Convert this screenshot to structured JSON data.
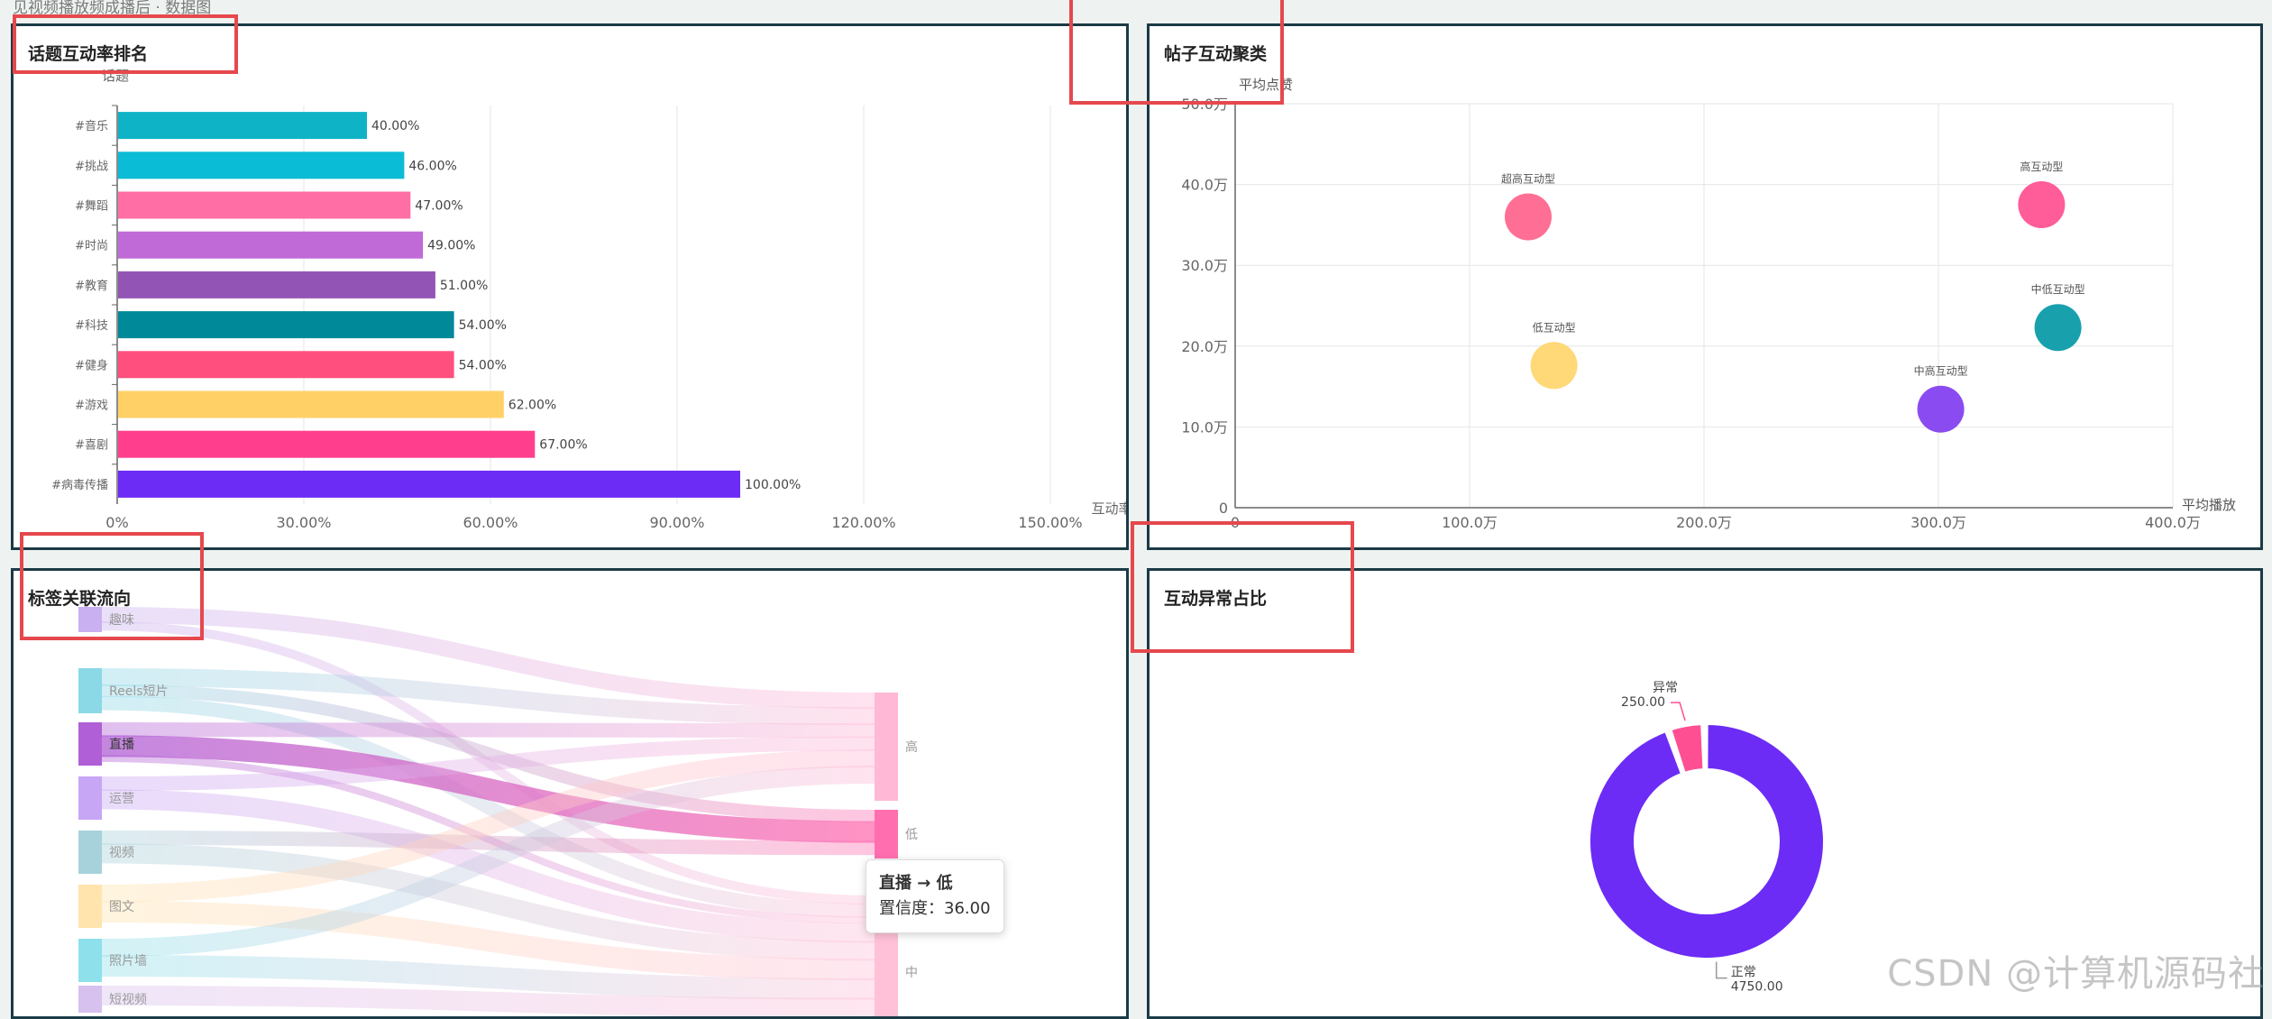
{
  "page": {
    "breadcrumb": "见视频播放频成播后 · 数据图",
    "watermark": "CSDN @计算机源码社"
  },
  "panels": {
    "topic_rank": {
      "title": "话题互动率排名"
    },
    "post_cluster": {
      "title": "帖子互动聚类"
    },
    "tag_flow": {
      "title": "标签关联流向"
    },
    "anomaly": {
      "title": "互动异常占比"
    }
  },
  "tooltip": {
    "line1": "直播 → 低",
    "line2": "置信度：36.00"
  },
  "colors": {
    "accent_border": "#1b3b46",
    "highlight": "#e5484d"
  },
  "chart_data": [
    {
      "type": "bar",
      "orientation": "horizontal",
      "title": "话题互动率排名",
      "ylabel": "话题",
      "xlabel": "互动率",
      "xlim": [
        0,
        150
      ],
      "xticks": [
        "0%",
        "30.00%",
        "60.00%",
        "90.00%",
        "120.00%",
        "150.00%"
      ],
      "categories": [
        "#音乐",
        "#挑战",
        "#舞蹈",
        "#时尚",
        "#教育",
        "#科技",
        "#健身",
        "#游戏",
        "#喜剧",
        "#病毒传播"
      ],
      "values": [
        40,
        46,
        47,
        49,
        51,
        54,
        54,
        62,
        67,
        100
      ],
      "value_labels": [
        "40.00%",
        "46.00%",
        "47.00%",
        "49.00%",
        "51.00%",
        "54.00%",
        "54.00%",
        "62.00%",
        "67.00%",
        "100.00%"
      ],
      "colors": [
        "#0fb3c6",
        "#0bbcd6",
        "#ff6fa5",
        "#c06ad8",
        "#9355b5",
        "#008a99",
        "#ff4f7e",
        "#ffd066",
        "#ff3f8e",
        "#6c2cf5"
      ]
    },
    {
      "type": "scatter",
      "title": "帖子互动聚类",
      "xlabel": "平均播放",
      "ylabel": "平均点赞",
      "xlim": [
        0,
        400
      ],
      "ylim": [
        0,
        50
      ],
      "xticks": [
        "0",
        "100.0万",
        "200.0万",
        "300.0万",
        "400.0万"
      ],
      "yticks": [
        "0",
        "10.0万",
        "20.0万",
        "30.0万",
        "40.0万",
        "50.0万"
      ],
      "points": [
        {
          "label": "超高互动型",
          "x": 125,
          "y": 36,
          "color": "#ff6f95"
        },
        {
          "label": "高互动型",
          "x": 344,
          "y": 37.5,
          "color": "#ff5c9a"
        },
        {
          "label": "中低互动型",
          "x": 351,
          "y": 22.3,
          "color": "#18a0ad"
        },
        {
          "label": "低互动型",
          "x": 136,
          "y": 17.6,
          "color": "#ffd877"
        },
        {
          "label": "中高互动型",
          "x": 301,
          "y": 12.2,
          "color": "#8a4cf0"
        }
      ]
    },
    {
      "type": "sankey",
      "title": "标签关联流向",
      "sources": [
        {
          "name": "趣味",
          "color": "#c9b0f0"
        },
        {
          "name": "Reels短片",
          "color": "#8bd8e6"
        },
        {
          "name": "直播",
          "color": "#b05fd6"
        },
        {
          "name": "运营",
          "color": "#c7a6f5"
        },
        {
          "name": "视频",
          "color": "#a7d2db"
        },
        {
          "name": "图文",
          "color": "#ffe4ad"
        },
        {
          "name": "照片墙",
          "color": "#8ee0ea"
        },
        {
          "name": "短视频",
          "color": "#d7c1ef"
        }
      ],
      "targets": [
        {
          "name": "高",
          "color": "#ffb8d6"
        },
        {
          "name": "低",
          "color": "#ff6fb0"
        },
        {
          "name": "中",
          "color": "#ffc1d8"
        }
      ]
    },
    {
      "type": "pie",
      "title": "互动异常占比",
      "slices": [
        {
          "name": "正常",
          "value": 4750,
          "value_label": "4750.00",
          "color": "#6c2cf5"
        },
        {
          "name": "异常",
          "value": 250,
          "value_label": "250.00",
          "color": "#ff4f93"
        }
      ]
    }
  ]
}
